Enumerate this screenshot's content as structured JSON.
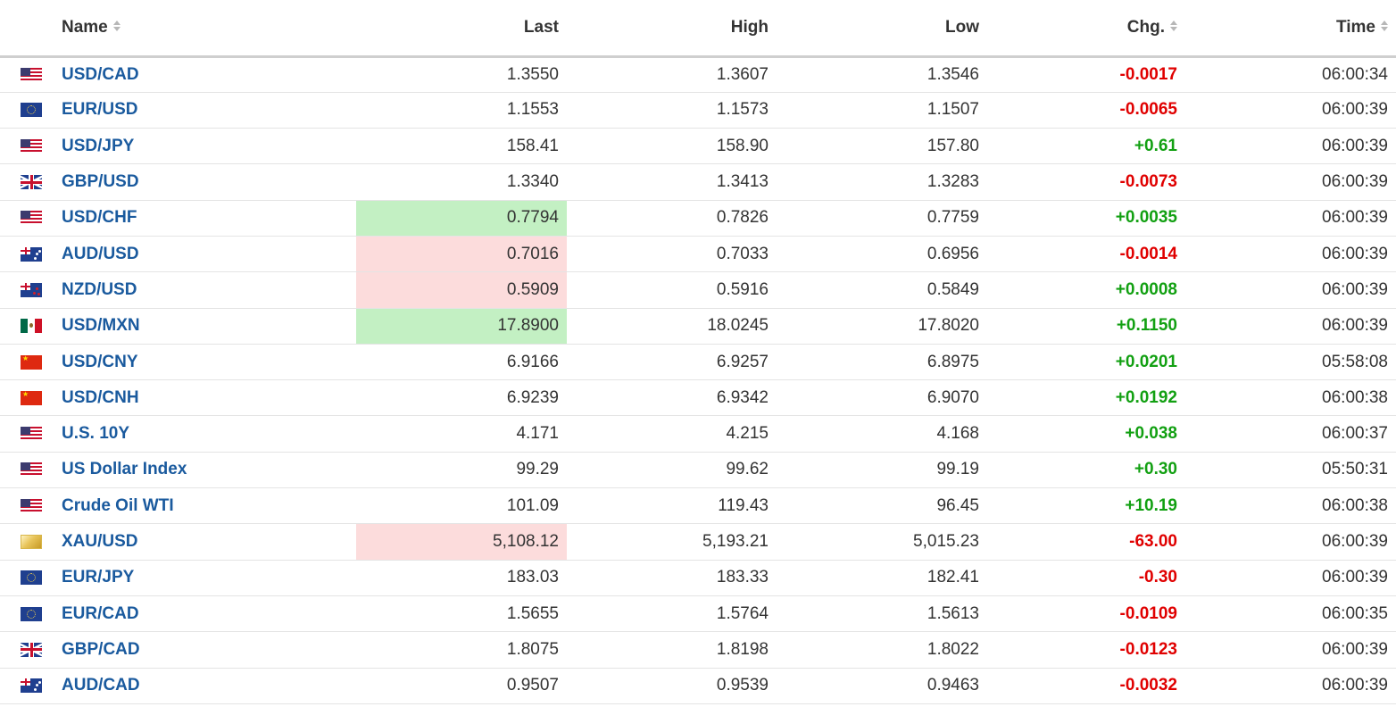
{
  "headers": {
    "name": "Name",
    "last": "Last",
    "high": "High",
    "low": "Low",
    "chg": "Chg.",
    "time": "Time"
  },
  "colors": {
    "name_link": "#1a5a9e",
    "positive": "#12a012",
    "negative": "#e00000",
    "flash_up_bg": "#c3f0c3",
    "flash_down_bg": "#fcdcdc"
  },
  "rows": [
    {
      "flag": "us-flag-icon",
      "name": "USD/CAD",
      "last": "1.3550",
      "high": "1.3607",
      "low": "1.3546",
      "chg": "-0.0017",
      "dir": "down",
      "time": "06:00:34",
      "flash": ""
    },
    {
      "flag": "eu-flag-icon",
      "name": "EUR/USD",
      "last": "1.1553",
      "high": "1.1573",
      "low": "1.1507",
      "chg": "-0.0065",
      "dir": "down",
      "time": "06:00:39",
      "flash": ""
    },
    {
      "flag": "us-flag-icon",
      "name": "USD/JPY",
      "last": "158.41",
      "high": "158.90",
      "low": "157.80",
      "chg": "+0.61",
      "dir": "up",
      "time": "06:00:39",
      "flash": ""
    },
    {
      "flag": "gb-flag-icon",
      "name": "GBP/USD",
      "last": "1.3340",
      "high": "1.3413",
      "low": "1.3283",
      "chg": "-0.0073",
      "dir": "down",
      "time": "06:00:39",
      "flash": ""
    },
    {
      "flag": "us-flag-icon",
      "name": "USD/CHF",
      "last": "0.7794",
      "high": "0.7826",
      "low": "0.7759",
      "chg": "+0.0035",
      "dir": "up",
      "time": "06:00:39",
      "flash": "green"
    },
    {
      "flag": "au-flag-icon",
      "name": "AUD/USD",
      "last": "0.7016",
      "high": "0.7033",
      "low": "0.6956",
      "chg": "-0.0014",
      "dir": "down",
      "time": "06:00:39",
      "flash": "red"
    },
    {
      "flag": "nz-flag-icon",
      "name": "NZD/USD",
      "last": "0.5909",
      "high": "0.5916",
      "low": "0.5849",
      "chg": "+0.0008",
      "dir": "up",
      "time": "06:00:39",
      "flash": "red"
    },
    {
      "flag": "mx-flag-icon",
      "name": "USD/MXN",
      "last": "17.8900",
      "high": "18.0245",
      "low": "17.8020",
      "chg": "+0.1150",
      "dir": "up",
      "time": "06:00:39",
      "flash": "green"
    },
    {
      "flag": "cn-flag-icon",
      "name": "USD/CNY",
      "last": "6.9166",
      "high": "6.9257",
      "low": "6.8975",
      "chg": "+0.0201",
      "dir": "up",
      "time": "05:58:08",
      "flash": ""
    },
    {
      "flag": "cn-flag-icon",
      "name": "USD/CNH",
      "last": "6.9239",
      "high": "6.9342",
      "low": "6.9070",
      "chg": "+0.0192",
      "dir": "up",
      "time": "06:00:38",
      "flash": ""
    },
    {
      "flag": "us-flag-icon",
      "name": "U.S. 10Y",
      "last": "4.171",
      "high": "4.215",
      "low": "4.168",
      "chg": "+0.038",
      "dir": "up",
      "time": "06:00:37",
      "flash": ""
    },
    {
      "flag": "us-flag-icon",
      "name": "US Dollar Index",
      "last": "99.29",
      "high": "99.62",
      "low": "99.19",
      "chg": "+0.30",
      "dir": "up",
      "time": "05:50:31",
      "flash": ""
    },
    {
      "flag": "us-flag-icon",
      "name": "Crude Oil WTI",
      "last": "101.09",
      "high": "119.43",
      "low": "96.45",
      "chg": "+10.19",
      "dir": "up",
      "time": "06:00:38",
      "flash": ""
    },
    {
      "flag": "gold-icon",
      "name": "XAU/USD",
      "last": "5,108.12",
      "high": "5,193.21",
      "low": "5,015.23",
      "chg": "-63.00",
      "dir": "down",
      "time": "06:00:39",
      "flash": "red"
    },
    {
      "flag": "eu-flag-icon",
      "name": "EUR/JPY",
      "last": "183.03",
      "high": "183.33",
      "low": "182.41",
      "chg": "-0.30",
      "dir": "down",
      "time": "06:00:39",
      "flash": ""
    },
    {
      "flag": "eu-flag-icon",
      "name": "EUR/CAD",
      "last": "1.5655",
      "high": "1.5764",
      "low": "1.5613",
      "chg": "-0.0109",
      "dir": "down",
      "time": "06:00:35",
      "flash": ""
    },
    {
      "flag": "gb-flag-icon",
      "name": "GBP/CAD",
      "last": "1.8075",
      "high": "1.8198",
      "low": "1.8022",
      "chg": "-0.0123",
      "dir": "down",
      "time": "06:00:39",
      "flash": ""
    },
    {
      "flag": "au-flag-icon",
      "name": "AUD/CAD",
      "last": "0.9507",
      "high": "0.9539",
      "low": "0.9463",
      "chg": "-0.0032",
      "dir": "down",
      "time": "06:00:39",
      "flash": ""
    }
  ]
}
